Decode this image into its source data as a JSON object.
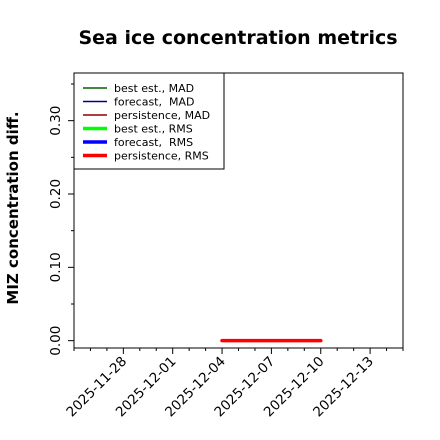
{
  "chart_data": {
    "type": "line",
    "title": "Sea ice concentration metrics",
    "xlabel": "",
    "ylabel": "MIZ concentration diff.",
    "x_axis": {
      "type": "date",
      "range": [
        "2025-11-25",
        "2025-12-15"
      ],
      "ticks": [
        "2025-11-28",
        "2025-12-01",
        "2025-12-04",
        "2025-12-07",
        "2025-12-10",
        "2025-12-13"
      ],
      "highlighted_tick": "2025-12-04",
      "highlight_color": "#228b22"
    },
    "y_axis": {
      "range": [
        -0.01,
        0.365
      ],
      "major_ticks": [
        "0.00",
        "0.10",
        "0.20",
        "0.30"
      ],
      "minor_ticks": [
        0.05,
        0.15,
        0.25,
        0.35
      ]
    },
    "grid": false,
    "legend_placement": "top-left",
    "series": [
      {
        "name": "best est., MAD",
        "color": "#006400",
        "style": "thin",
        "x": [],
        "values": []
      },
      {
        "name": "forecast,  MAD",
        "color": "#00008b",
        "style": "thin",
        "x": [],
        "values": []
      },
      {
        "name": "persistence, MAD",
        "color": "#8b0000",
        "style": "thin",
        "x": [],
        "values": []
      },
      {
        "name": "best est., RMS",
        "color": "#00ff00",
        "style": "thick",
        "x": [],
        "values": []
      },
      {
        "name": "forecast,  RMS",
        "color": "#0000ff",
        "style": "thick",
        "x": [],
        "values": []
      },
      {
        "name": "persistence, RMS",
        "color": "#ff0000",
        "style": "thick",
        "x": [
          "2025-12-04",
          "2025-12-05",
          "2025-12-06",
          "2025-12-07",
          "2025-12-08",
          "2025-12-09",
          "2025-12-10"
        ],
        "values": [
          0.0,
          0.0,
          0.0,
          0.0,
          0.0,
          0.0,
          0.0
        ]
      }
    ]
  }
}
